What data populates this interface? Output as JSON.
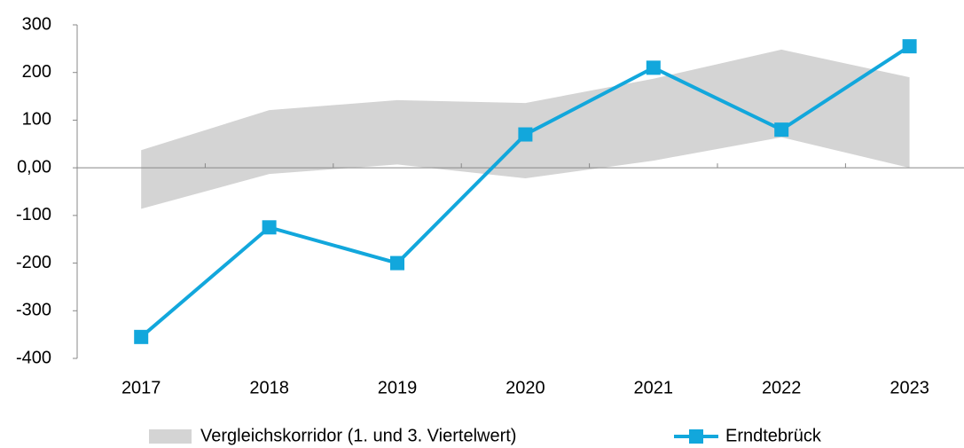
{
  "chart_data": {
    "type": "line",
    "categories": [
      "2017",
      "2018",
      "2019",
      "2020",
      "2021",
      "2022",
      "2023"
    ],
    "series": [
      {
        "name": "Vergleichskorridor (1. und 3. Viertelwert)",
        "type": "band",
        "color": "#d4d4d4",
        "lower": [
          -86,
          -13,
          7,
          -22,
          15,
          64,
          0
        ],
        "upper": [
          37,
          121,
          142,
          136,
          187,
          248,
          190
        ]
      },
      {
        "name": "Erndtebrück",
        "type": "line",
        "color": "#12a7dc",
        "values": [
          -355,
          -125,
          -200,
          70,
          210,
          80,
          255
        ]
      }
    ],
    "ylim": [
      -400,
      300
    ],
    "yticks": [
      300,
      200,
      100,
      {
        "value": 0,
        "label": "0,00"
      },
      -100,
      -200,
      -300,
      -400
    ],
    "legend": "bottom"
  }
}
